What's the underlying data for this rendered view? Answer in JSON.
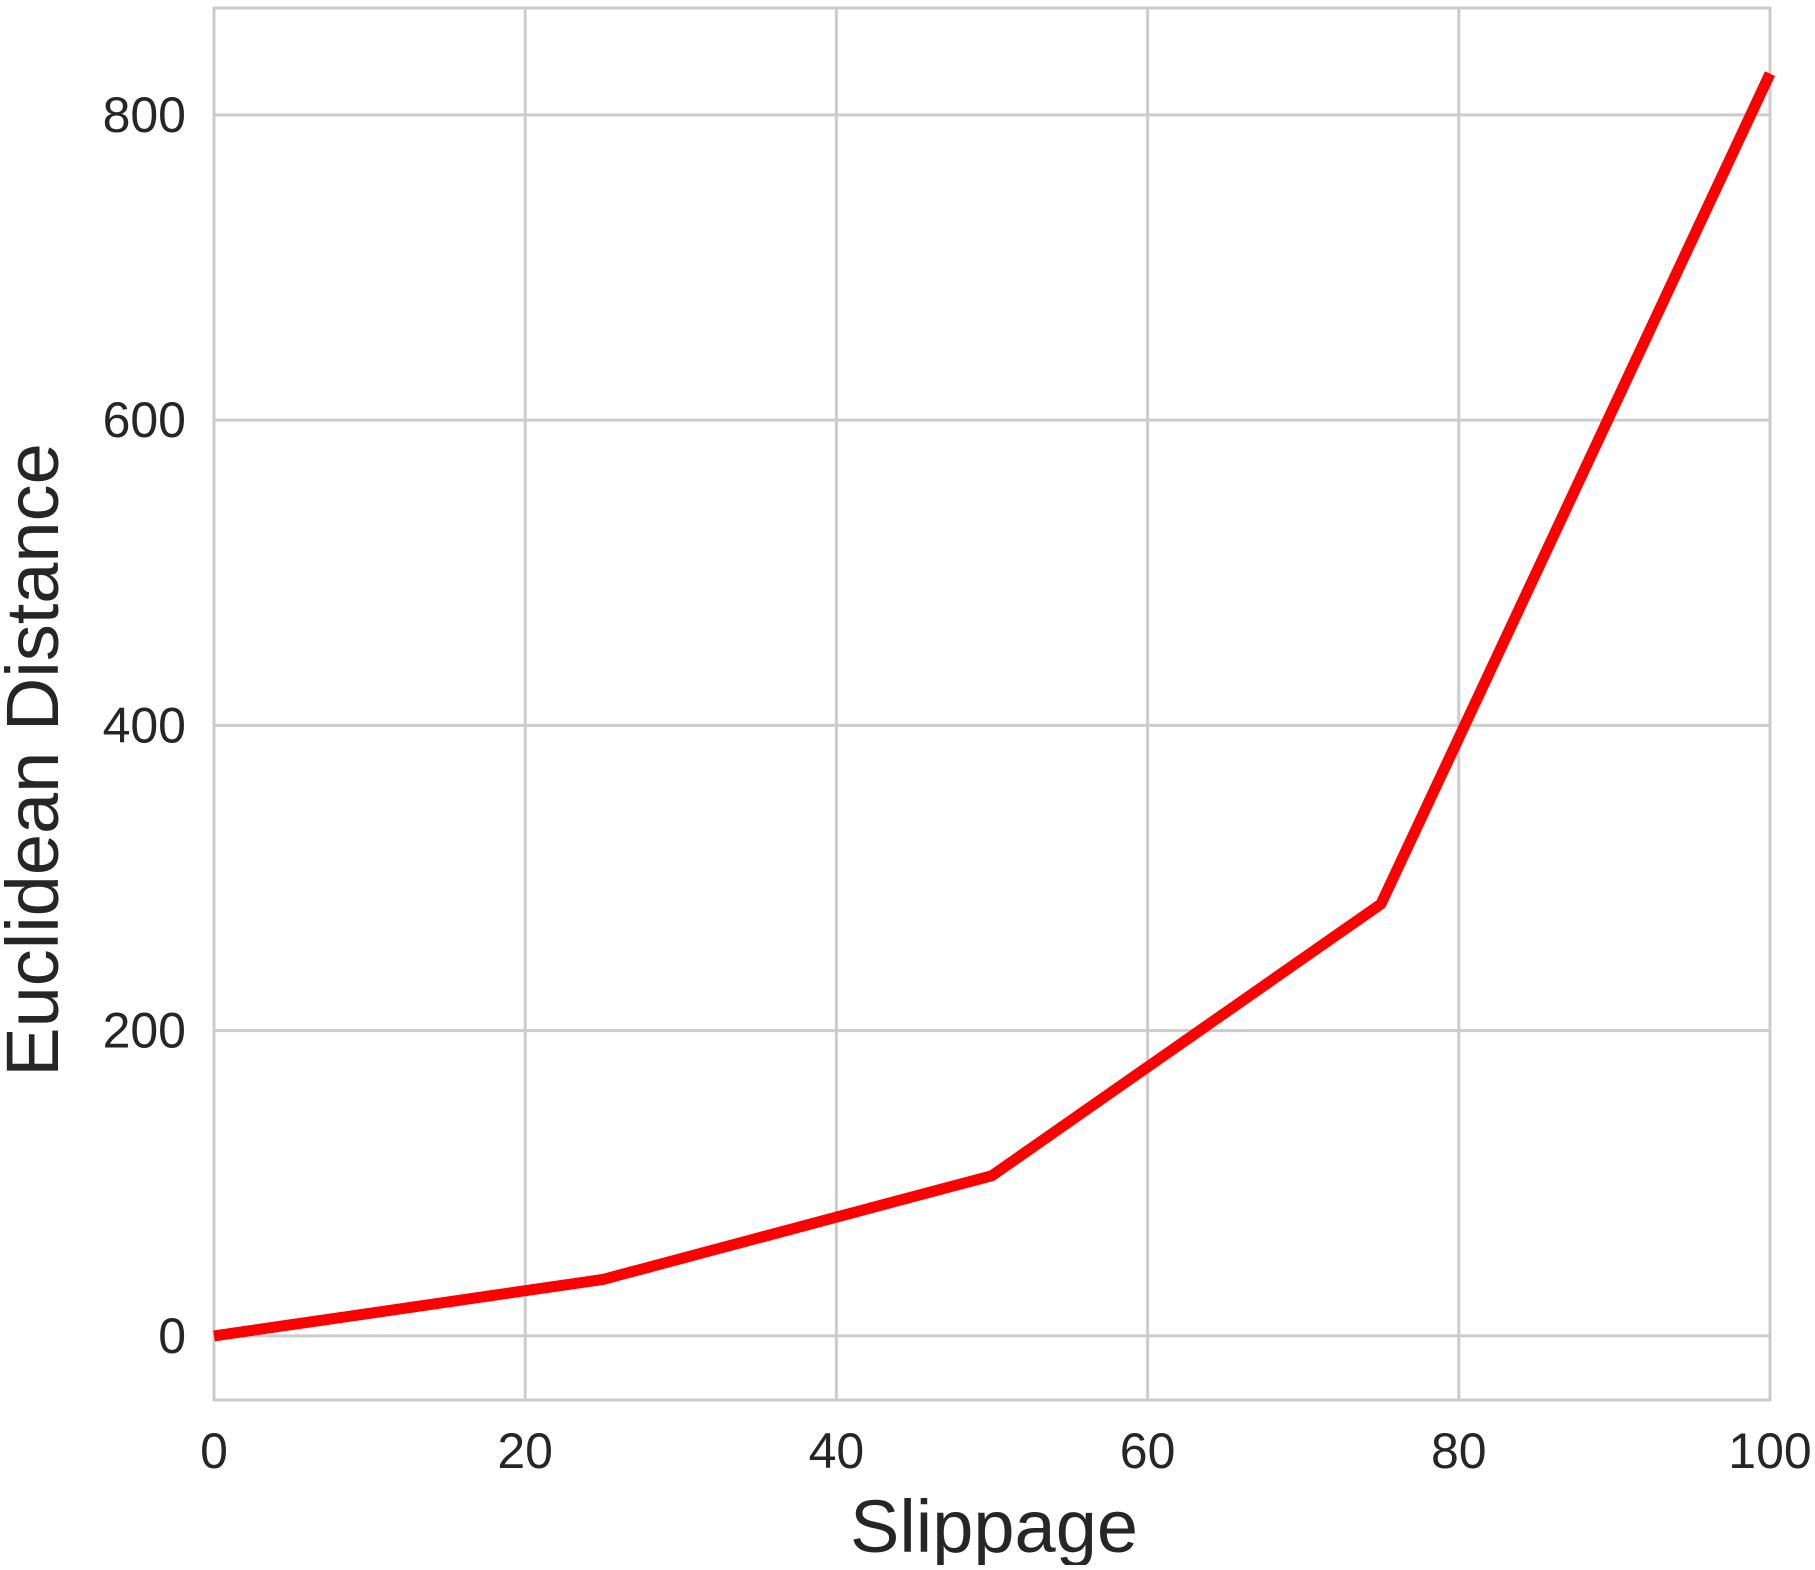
{
  "chart_data": {
    "type": "line",
    "title": "",
    "xlabel": "Slippage",
    "ylabel": "Euclidean Distance",
    "x": [
      0,
      25,
      50,
      75,
      100
    ],
    "series": [
      {
        "name": "",
        "values": [
          0,
          37,
          105,
          283,
          827
        ],
        "color": "#ff0000"
      }
    ],
    "xlim": [
      0,
      100
    ],
    "ylim": [
      -42,
      870
    ],
    "xticks": [
      0,
      20,
      40,
      60,
      80,
      100
    ],
    "xtick_labels": [
      "0",
      "20",
      "40",
      "60",
      "80",
      "100"
    ],
    "yticks": [
      0,
      200,
      400,
      600,
      800
    ],
    "ytick_labels": [
      "0",
      "200",
      "400",
      "600",
      "800"
    ],
    "grid": true,
    "legend": "none"
  },
  "colors": {
    "line": "#ff0000",
    "grid": "#cccccc",
    "spine": "#cccccc",
    "text": "#262626",
    "background": "#ffffff"
  }
}
